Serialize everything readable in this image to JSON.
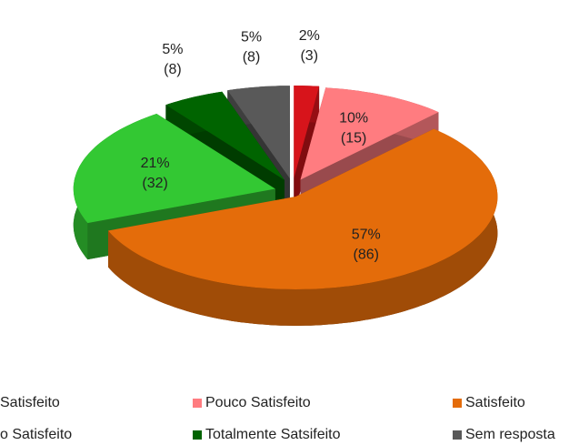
{
  "chart_data": {
    "type": "pie",
    "categories": [
      "Satisfeito",
      "Pouco Satisfeito",
      "Satisfeito",
      "o Satisfeito",
      "Totalmente Satsifeito",
      "Sem resposta"
    ],
    "values": [
      2,
      10,
      57,
      21,
      5,
      5
    ],
    "value_labels": [
      "2%",
      "10%",
      "57%",
      "21%",
      "5%",
      "5%"
    ],
    "count_labels": [
      "(3)",
      "(15)",
      "(86)",
      "(32)",
      "(8)",
      "(8)"
    ],
    "colors": [
      "#d7141b",
      "#ff7c80",
      "#e46c0a",
      "#33c833",
      "#006400",
      "#595959"
    ],
    "legend": "bottom"
  }
}
